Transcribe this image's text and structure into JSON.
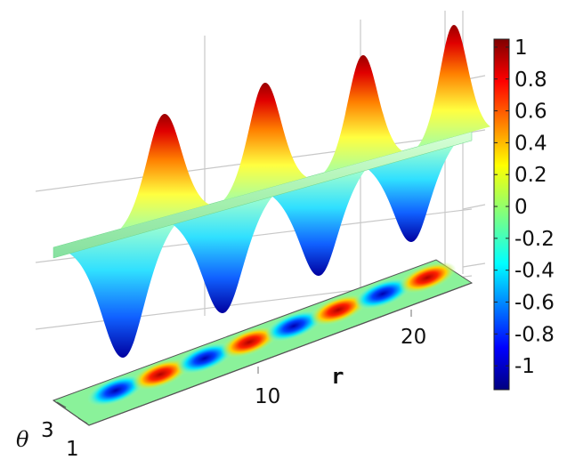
{
  "chart_data": {
    "type": "surface3d",
    "title": "",
    "xlabel": "r",
    "ylabel": "θ",
    "zlabel": "",
    "xticks": [
      "10",
      "20"
    ],
    "yticks": [
      "1",
      "3"
    ],
    "surface_peaks": [
      {
        "name": "peak-1",
        "value": 1.0
      },
      {
        "name": "peak-2",
        "value": 1.0
      },
      {
        "name": "peak-3",
        "value": 1.0
      },
      {
        "name": "peak-4",
        "value": 1.0
      }
    ],
    "surface_troughs": [
      {
        "name": "trough-1",
        "value": -1.0
      },
      {
        "name": "trough-2",
        "value": -1.0
      },
      {
        "name": "trough-3",
        "value": -1.0
      },
      {
        "name": "trough-4",
        "value": -1.0
      }
    ],
    "projection_spots": [
      -1,
      1,
      -1,
      1,
      -1,
      1,
      -1,
      1
    ],
    "colorbar": {
      "colormap": "jet",
      "min": -1.15,
      "max": 1.05,
      "ticks": [
        "1",
        "0.8",
        "0.6",
        "0.4",
        "0.2",
        "0",
        "-0.2",
        "-0.4",
        "-0.6",
        "-0.8",
        "-1"
      ]
    },
    "grid": true,
    "legend": "colorbar-right"
  }
}
